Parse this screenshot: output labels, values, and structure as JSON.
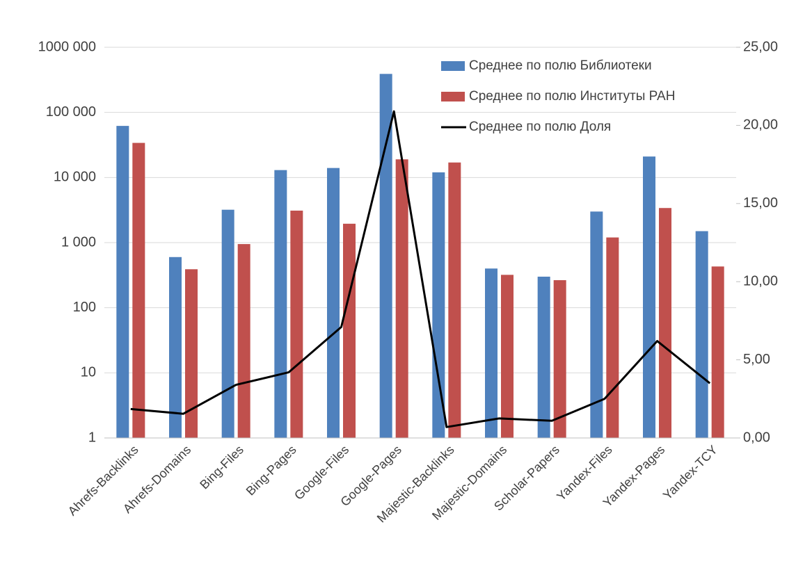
{
  "chart_data": {
    "type": "bar",
    "categories": [
      "Ahrefs-Backlinks",
      "Ahrefs-Domains",
      "Bing-Files",
      "Bing-Pages",
      "Google-Files",
      "Google-Pages",
      "Majestic-Backlinks",
      "Majestic-Domains",
      "Scholar-Papers",
      "Yandex-Files",
      "Yandex-Pages",
      "Yandex-TCY"
    ],
    "series": [
      {
        "name": "Среднее по полю Библиотеки",
        "kind": "bar",
        "axis": "left",
        "color": "#4f81bd",
        "values": [
          62000,
          600,
          3200,
          13000,
          14000,
          390000,
          12000,
          400,
          300,
          3000,
          21000,
          1500
        ]
      },
      {
        "name": "Среднее по полю Институты РАН",
        "kind": "bar",
        "axis": "left",
        "color": "#c0504d",
        "values": [
          34000,
          390,
          950,
          3100,
          1950,
          19000,
          17000,
          320,
          265,
          1200,
          3400,
          430
        ]
      },
      {
        "name": "Среднее по полю Доля",
        "kind": "line",
        "axis": "right",
        "color": "#000000",
        "values": [
          1.85,
          1.55,
          3.4,
          4.2,
          7.1,
          20.9,
          0.7,
          1.25,
          1.1,
          2.5,
          6.2,
          3.5
        ]
      }
    ],
    "left_axis": {
      "scale": "log",
      "ylim": [
        1,
        1000000
      ],
      "tick_values": [
        1,
        10,
        100,
        1000,
        10000,
        100000,
        1000000
      ],
      "tick_labels": [
        "1",
        "10",
        "100",
        "1 000",
        "10 000",
        "100 000",
        "1000 000"
      ]
    },
    "right_axis": {
      "scale": "linear",
      "ylim": [
        0,
        25
      ],
      "tick_values": [
        0,
        5,
        10,
        15,
        20,
        25
      ],
      "tick_labels": [
        "0,00",
        "5,00",
        "10,00",
        "15,00",
        "20,00",
        "25,00"
      ]
    },
    "grid": true,
    "legend": "top-right"
  }
}
